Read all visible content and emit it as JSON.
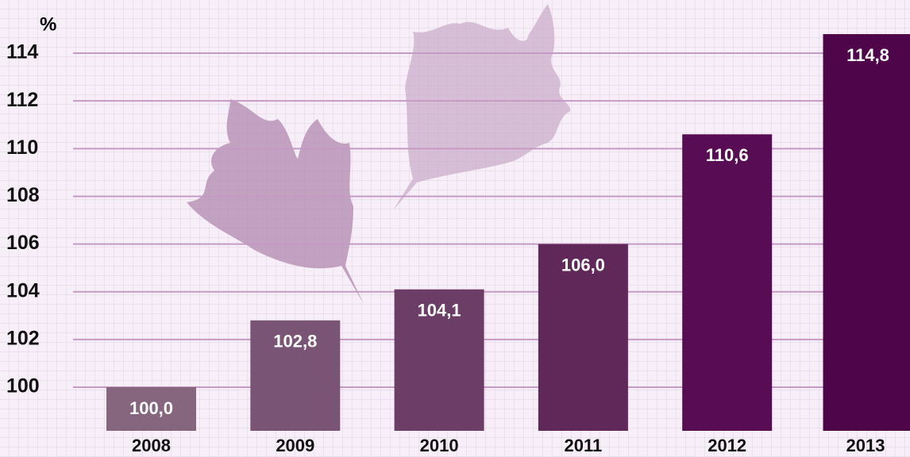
{
  "chart_data": {
    "type": "bar",
    "unit_label": "%",
    "categories": [
      "2008",
      "2009",
      "2010",
      "2011",
      "2012",
      "2013"
    ],
    "values": [
      100.0,
      102.8,
      104.1,
      106.0,
      110.6,
      114.8
    ],
    "value_labels": [
      "100,0",
      "102,8",
      "104,1",
      "106,0",
      "110,6",
      "114,8"
    ],
    "colors": [
      "#86657f",
      "#7a5474",
      "#6c3d67",
      "#5f2859",
      "#570c53",
      "#4e0549"
    ],
    "ylim": [
      98.17,
      116.23
    ],
    "yticks": [
      100,
      102,
      104,
      106,
      108,
      110,
      112,
      114
    ],
    "grid": true
  }
}
